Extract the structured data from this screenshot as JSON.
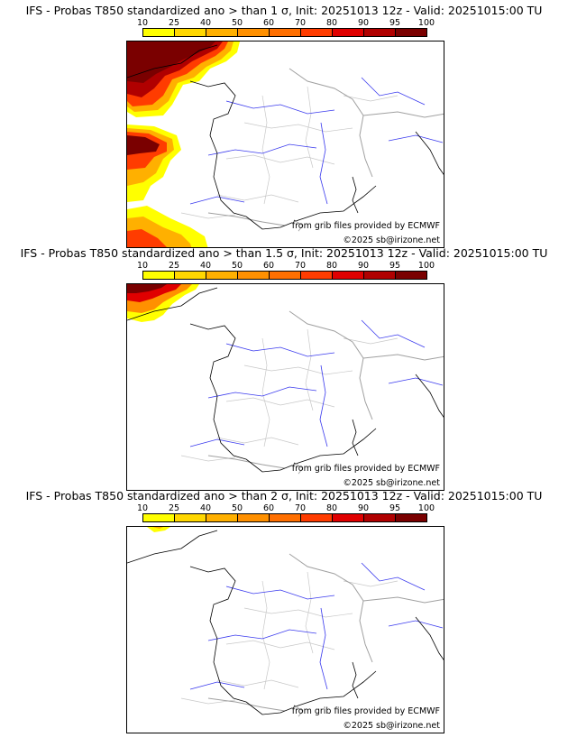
{
  "colorbar": {
    "ticks": [
      "10",
      "25",
      "40",
      "50",
      "60",
      "70",
      "80",
      "90",
      "95",
      "100"
    ],
    "colors": [
      "#ffff00",
      "#ffd700",
      "#ffb000",
      "#ff9000",
      "#ff6f00",
      "#ff3c00",
      "#e00000",
      "#b00000",
      "#7a0000"
    ]
  },
  "colors": {
    "coast": "#000000",
    "rivers": "#3a3aee",
    "borders": "#a0a0a0",
    "admin": "#c8c8c8"
  },
  "panels": [
    {
      "title": "IFS - Probas T850  standardized ano > than 1 σ, Init: 20251013 12z - Valid: 20251015:00 TU",
      "credit_source": "from grib files provided by ECMWF",
      "credit_copyright": "©2025 sb@irizone.net"
    },
    {
      "title": "IFS - Probas T850  standardized ano > than 1.5 σ, Init: 20251013 12z - Valid: 20251015:00 TU",
      "credit_source": "from grib files provided by ECMWF",
      "credit_copyright": "©2025 sb@irizone.net"
    },
    {
      "title": "IFS - Probas T850  standardized ano > than 2 σ, Init: 20251013 12z - Valid: 20251015:00 TU",
      "credit_source": "from grib files provided by ECMWF",
      "credit_copyright": "©2025 sb@irizone.net"
    }
  ]
}
